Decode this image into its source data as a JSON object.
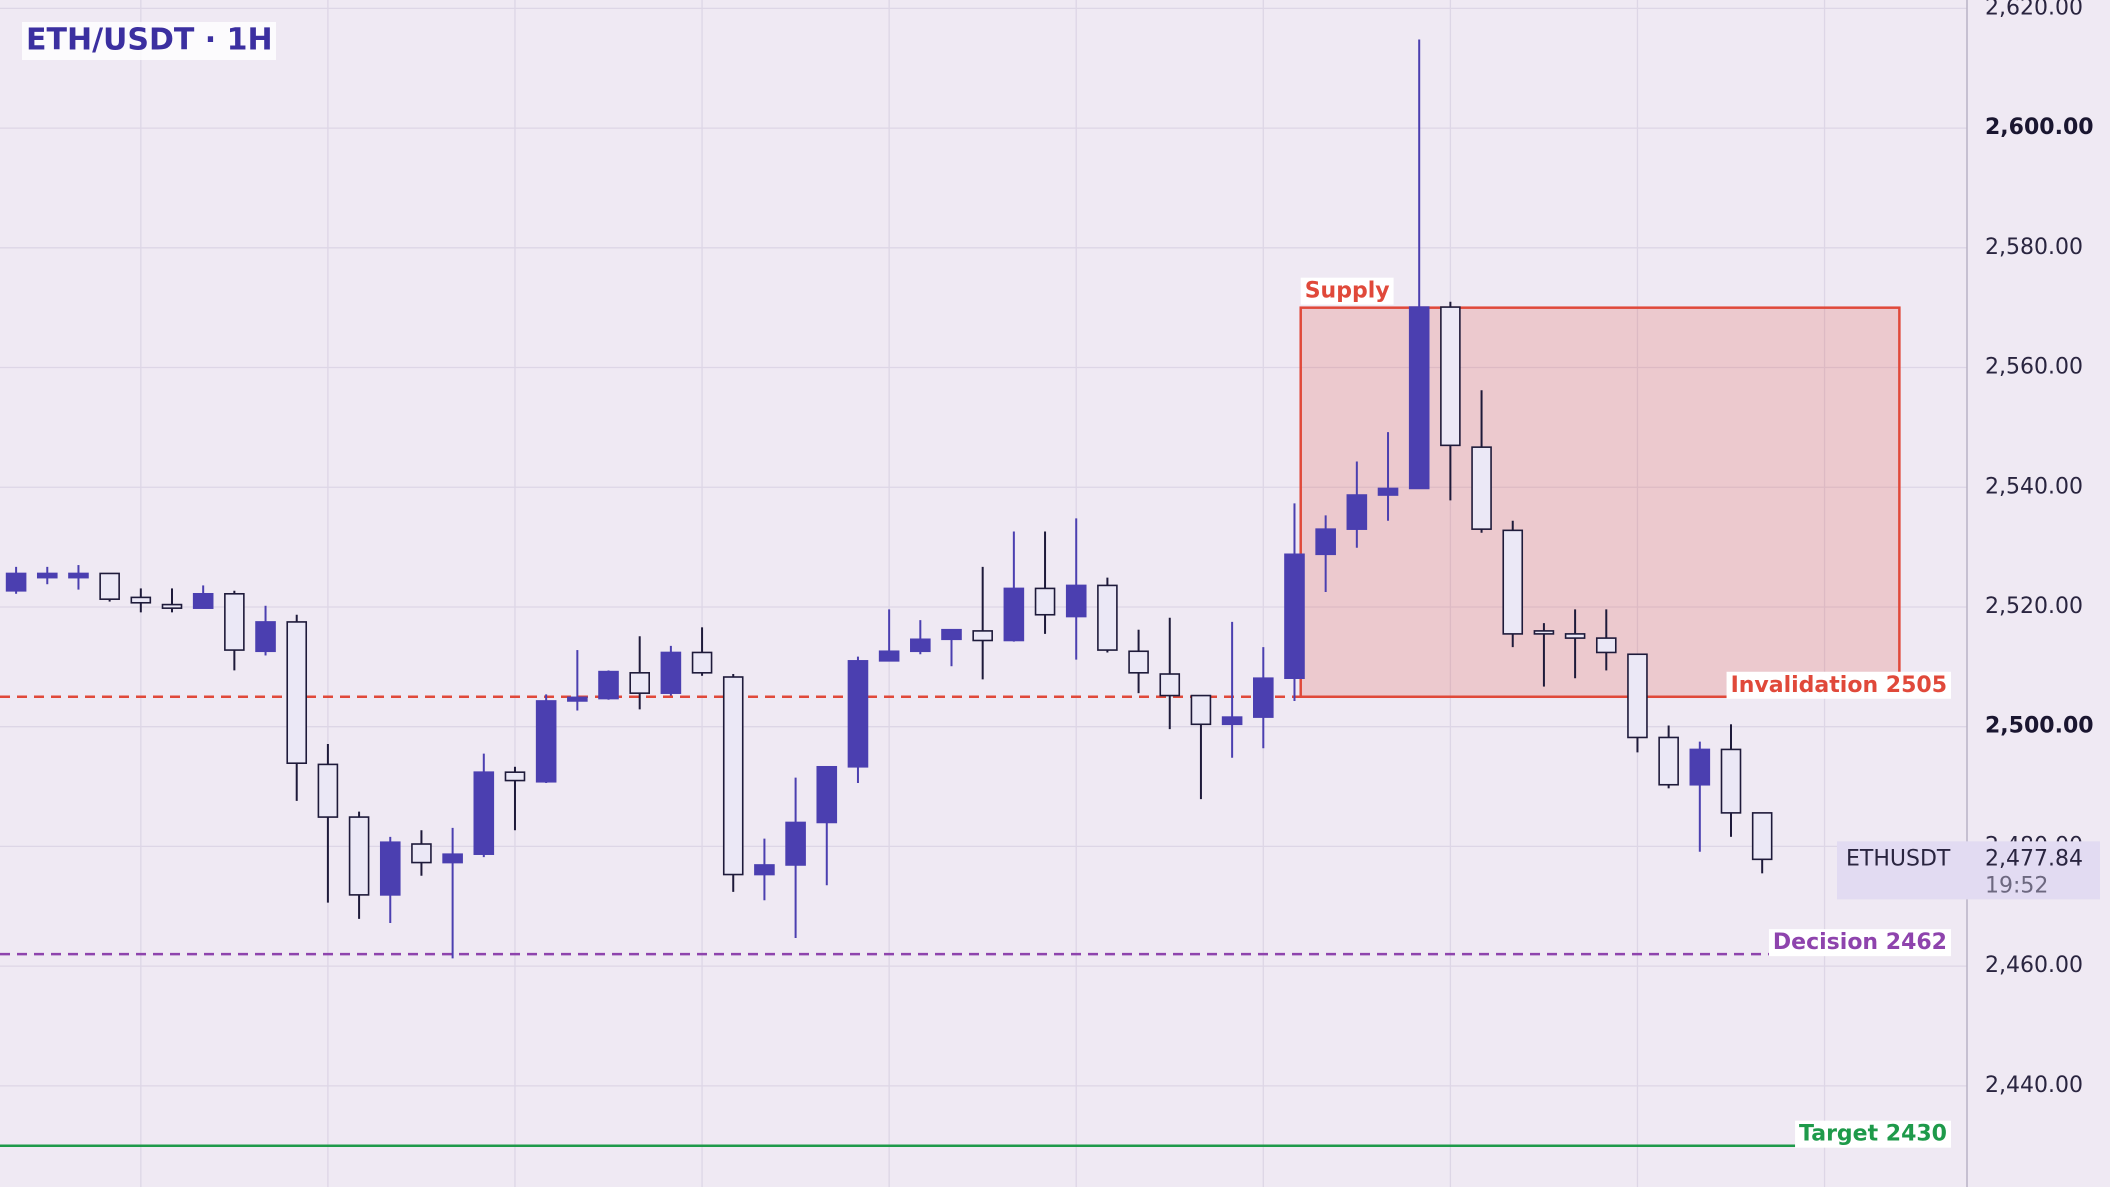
{
  "chart_data": {
    "type": "candlestick",
    "title": "ETH/USDT · 1H",
    "open": [
      2522.7,
      2524.9,
      2524.9,
      2525.6,
      2521.6,
      2520.4,
      2519.8,
      2522.2,
      2512.6,
      2517.5,
      2493.7,
      2484.9,
      2471.9,
      2480.4,
      2477.3,
      2478.7,
      2492.4,
      2490.8,
      2504.3,
      2504.7,
      2509.0,
      2505.6,
      2512.4,
      2508.3,
      2475.3,
      2476.9,
      2484.0,
      2493.3,
      2511.0,
      2512.6,
      2514.6,
      2516.0,
      2514.4,
      2523.1,
      2518.4,
      2523.6,
      2512.6,
      2508.8,
      2505.2,
      2500.4,
      2501.6,
      2508.1,
      2528.8,
      2533.0,
      2538.7,
      2539.8,
      2570.1,
      2546.7,
      2532.8,
      2516.0,
      2515.5,
      2514.8,
      2512.1,
      2498.2,
      2490.3,
      2496.2,
      2485.6
    ],
    "high": [
      2526.7,
      2526.7,
      2527,
      2525.6,
      2523.1,
      2523.1,
      2523.6,
      2522.7,
      2520.2,
      2518.7,
      2497.1,
      2485.8,
      2481.6,
      2482.7,
      2483.1,
      2495.5,
      2493.3,
      2505.4,
      2512.8,
      2509.4,
      2515.1,
      2513.5,
      2516.6,
      2508.8,
      2481.3,
      2491.5,
      2493.3,
      2511.7,
      2519.6,
      2517.8,
      2516.2,
      2526.7,
      2532.6,
      2532.6,
      2534.8,
      2524.9,
      2516.2,
      2518.2,
      2505.2,
      2517.5,
      2513.3,
      2537.3,
      2535.3,
      2544.3,
      2549.2,
      2614.8,
      2571.0,
      2556.2,
      2534.4,
      2517.3,
      2519.6,
      2519.6,
      2512.1,
      2500.2,
      2497.5,
      2500.4,
      2485.6
    ],
    "low": [
      2522.2,
      2523.8,
      2522.9,
      2520.9,
      2519.1,
      2519.1,
      2519.8,
      2509.4,
      2511.9,
      2487.6,
      2470.6,
      2467.9,
      2467.2,
      2475.1,
      2461.3,
      2478.2,
      2482.7,
      2490.6,
      2502.7,
      2504.5,
      2502.9,
      2505.2,
      2508.5,
      2472.4,
      2471.0,
      2464.7,
      2473.5,
      2490.6,
      2511.0,
      2512.1,
      2510.1,
      2507.9,
      2514.2,
      2515.5,
      2511.2,
      2512.4,
      2505.6,
      2499.6,
      2487.9,
      2494.8,
      2496.4,
      2504.3,
      2522.5,
      2529.9,
      2534.4,
      2539.8,
      2537.8,
      2532.4,
      2513.3,
      2506.7,
      2508.1,
      2509.4,
      2495.7,
      2489.7,
      2479.1,
      2481.6,
      2475.5
    ],
    "close": [
      2525.6,
      2525.6,
      2525.6,
      2521.3,
      2520.7,
      2519.8,
      2522.2,
      2512.8,
      2517.5,
      2493.9,
      2484.9,
      2471.9,
      2480.7,
      2477.3,
      2478.7,
      2492.4,
      2491.0,
      2504.3,
      2504.9,
      2509.2,
      2505.6,
      2512.4,
      2509.0,
      2475.3,
      2476.9,
      2484.0,
      2493.3,
      2511.0,
      2512.6,
      2514.6,
      2516.2,
      2514.4,
      2523.1,
      2518.7,
      2523.6,
      2512.8,
      2509.0,
      2505.2,
      2500.4,
      2501.6,
      2508.1,
      2528.8,
      2533.0,
      2538.7,
      2539.8,
      2570.1,
      2547.0,
      2533.0,
      2515.5,
      2515.5,
      2514.8,
      2512.4,
      2498.2,
      2490.3,
      2496.2,
      2485.6,
      2477.84
    ],
    "up_color": "#4b3fb0",
    "down_color": "#ebe8f6",
    "outline_color": "#1e1a3a",
    "ylim": [
      2423.1,
      2621.4
    ],
    "yticks": [
      {
        "value": 2440,
        "label": "2,440.00"
      },
      {
        "value": 2460,
        "label": "2,460.00"
      },
      {
        "value": 2480,
        "label": "2,480.00"
      },
      {
        "value": 2500,
        "label": "2,500.00"
      },
      {
        "value": 2520,
        "label": "2,520.00"
      },
      {
        "value": 2540,
        "label": "2,540.00"
      },
      {
        "value": 2560,
        "label": "2,560.00"
      },
      {
        "value": 2580,
        "label": "2,580.00"
      },
      {
        "value": 2600,
        "label": "2,600.00"
      },
      {
        "value": 2620,
        "label": "2,620.00"
      }
    ],
    "grid": true,
    "zone": {
      "label": "Supply",
      "top": 2570,
      "bottom": 2505,
      "x_range": [
        41.2,
        60.4
      ],
      "color": "#e0493a"
    },
    "levels": [
      {
        "label": "Invalidation 2505",
        "value": 2505,
        "color": "#e0493a",
        "style": "dashed"
      },
      {
        "label": "Decision 2462",
        "value": 2462,
        "color": "#8e44ad",
        "style": "dashed"
      },
      {
        "label": "Target 2430",
        "value": 2430,
        "color": "#1e9a4a",
        "style": "solid"
      }
    ],
    "last_price": {
      "symbol": "ETHUSDT",
      "price": {
        "value": 2477.84,
        "label": "2,477.84"
      },
      "countdown": "19:52"
    }
  }
}
